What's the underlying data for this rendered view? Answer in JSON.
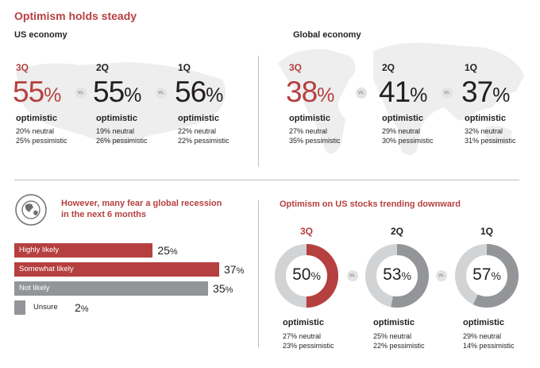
{
  "title": "Optimism holds steady",
  "us": {
    "label": "US economy",
    "items": [
      {
        "quarter": "3Q",
        "value": "55",
        "pct": "%",
        "opt": "optimistic",
        "neutral": "20% neutral",
        "pess": "25% pessimistic"
      },
      {
        "quarter": "2Q",
        "value": "55",
        "pct": "%",
        "opt": "optimistic",
        "neutral": "19% neutral",
        "pess": "26% pessimistic"
      },
      {
        "quarter": "1Q",
        "value": "56",
        "pct": "%",
        "opt": "optimistic",
        "neutral": "22% neutral",
        "pess": "22% pessimistic"
      }
    ]
  },
  "global": {
    "label": "Global economy",
    "items": [
      {
        "quarter": "3Q",
        "value": "38",
        "pct": "%",
        "opt": "optimistic",
        "neutral": "27% neutral",
        "pess": "35% pessimistic"
      },
      {
        "quarter": "2Q",
        "value": "41",
        "pct": "%",
        "opt": "optimistic",
        "neutral": "29% neutral",
        "pess": "30% pessimistic"
      },
      {
        "quarter": "1Q",
        "value": "37",
        "pct": "%",
        "opt": "optimistic",
        "neutral": "32% neutral",
        "pess": "31% pessimistic"
      }
    ]
  },
  "vs_label": "vs.",
  "recession": {
    "heading_line1": "However, many fear a global recession",
    "heading_line2": "in the next 6 months"
  },
  "stocks": {
    "heading": "Optimism on US stocks trending downward"
  },
  "colors": {
    "accent": "#b5403f",
    "grey": "#939598",
    "light": "#d1d3d4"
  },
  "chart_data": [
    {
      "type": "bar",
      "title": "However, many fear a global recession in the next 6 months",
      "categories": [
        "Highly likely",
        "Somewhat likely",
        "Not likely",
        "Unsure"
      ],
      "values": [
        25,
        37,
        35,
        2
      ],
      "value_labels": [
        "25",
        "37",
        "35",
        "2"
      ],
      "unit": "%",
      "colors": [
        "#b5403f",
        "#b5403f",
        "#939598",
        "#939598"
      ],
      "xlim": [
        0,
        37
      ]
    },
    {
      "type": "pie",
      "title": "Optimism on US stocks trending downward",
      "series": [
        {
          "name": "3Q",
          "value": 50,
          "label": "50",
          "opt": "optimistic",
          "neutral": "27% neutral",
          "pess": "23% pessimistic",
          "color": "#b5403f"
        },
        {
          "name": "2Q",
          "value": 53,
          "label": "53",
          "opt": "optimistic",
          "neutral": "25% neutral",
          "pess": "22% pessimistic",
          "color": "#939598"
        },
        {
          "name": "1Q",
          "value": 57,
          "label": "57",
          "opt": "optimistic",
          "neutral": "29% neutral",
          "pess": "14% pessimistic",
          "color": "#939598"
        }
      ],
      "unit": "%"
    }
  ]
}
